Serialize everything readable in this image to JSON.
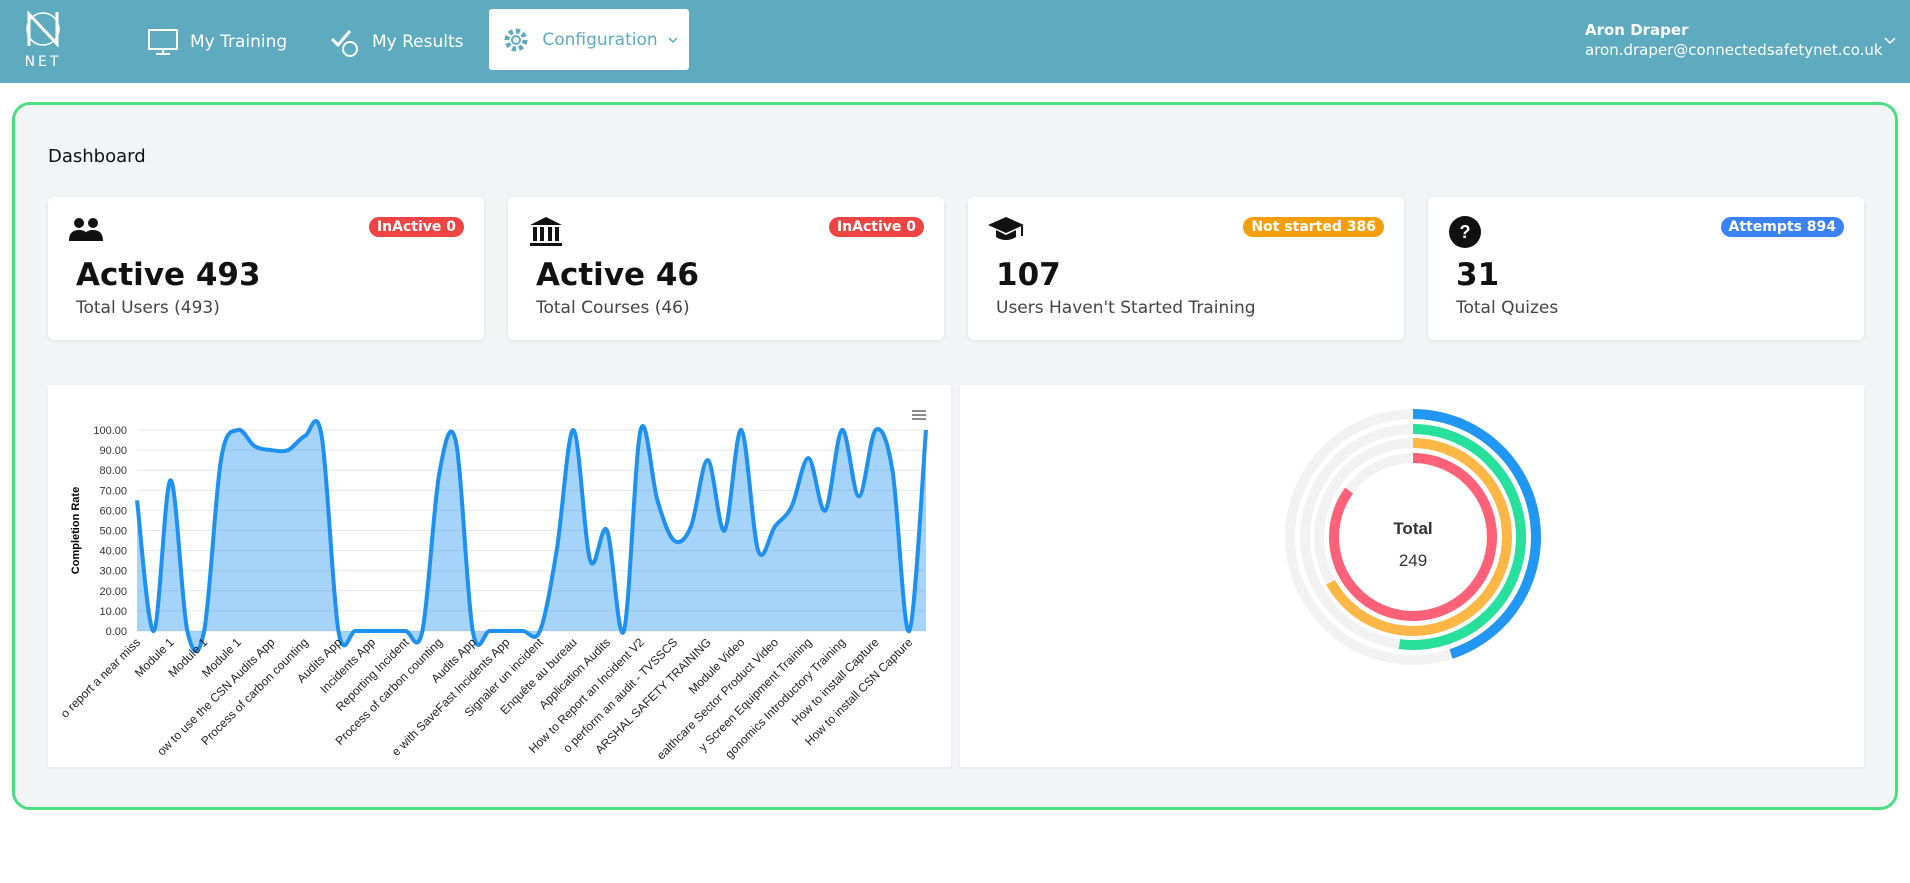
{
  "nav": {
    "logo": "NET",
    "items": [
      "My Training",
      "My Results",
      "Configuration"
    ],
    "user": {
      "name": "Aron Draper",
      "email": "aron.draper@connectedsafetynet.co.uk"
    }
  },
  "page_title": "Dashboard",
  "cards": [
    {
      "title": "Active 493",
      "subtitle": "Total Users (493)",
      "badge": "InActive 0",
      "badge_color": "#ef4444"
    },
    {
      "title": "Active 46",
      "subtitle": "Total Courses (46)",
      "badge": "InActive 0",
      "badge_color": "#ef4444"
    },
    {
      "title": "107",
      "subtitle": "Users Haven't Started Training",
      "badge": "Not started 386",
      "badge_color": "#f59e0b"
    },
    {
      "title": "31",
      "subtitle": "Total Quizes",
      "badge": "Attempts 894",
      "badge_color": "#3b82f6"
    }
  ],
  "chart_data": [
    {
      "type": "area",
      "y_label": "Completion Rate",
      "color": "#1e90f0",
      "grid": true,
      "categories": [
        "o report a near miss",
        null,
        "Module 1",
        null,
        "Module 1",
        null,
        "Module 1",
        null,
        "ow to use the CSN Audits App",
        null,
        "Process of carbon counting",
        null,
        "Audits App",
        null,
        "Incidents App",
        null,
        "Reporting Incident",
        null,
        "Process of carbon counting",
        null,
        "Audits App",
        null,
        "e with SaveFast Incidents App",
        null,
        "Signaler un incident",
        null,
        "Enquête au bureau",
        null,
        "Application Audits",
        null,
        "How to Report an Incident V2",
        null,
        "o perform an audit - TVSSCS",
        null,
        "ARSHAL SAFETY TRAINING",
        null,
        "Module Video",
        null,
        "ealthcare Sector Product Video",
        null,
        "y Screen Equipment Training",
        null,
        "gonomics Introductory Training",
        null,
        "How to install Capture",
        null,
        "How to install CSN Capture",
        null
      ],
      "values": [
        65,
        0,
        75,
        0,
        0,
        85,
        100,
        92,
        90,
        90,
        97,
        97,
        0,
        0,
        0,
        0,
        0,
        0,
        78,
        94,
        0,
        0,
        0,
        0,
        0,
        40,
        100,
        35,
        50,
        0,
        100,
        65,
        45,
        52,
        85,
        50,
        100,
        40,
        52,
        62,
        86,
        60,
        100,
        67,
        100,
        80,
        0,
        100
      ],
      "ylim": [
        0,
        100
      ],
      "yticks": [
        {
          "value": 0,
          "label": "0.00"
        },
        {
          "value": 10,
          "label": "10.00"
        },
        {
          "value": 20,
          "label": "20.00"
        },
        {
          "value": 30,
          "label": "30.00"
        },
        {
          "value": 40,
          "label": "40.00"
        },
        {
          "value": 50,
          "label": "50.00"
        },
        {
          "value": 60,
          "label": "60.00"
        },
        {
          "value": 70,
          "label": "70.00"
        },
        {
          "value": 80,
          "label": "80.00"
        },
        {
          "value": 90,
          "label": "90.00"
        },
        {
          "value": 100,
          "label": "100.00"
        }
      ]
    },
    {
      "type": "radialBar",
      "values": [
        45,
        52,
        67,
        85
      ],
      "colors": [
        "#2196f3",
        "#26e09b",
        "#feb744",
        "#ff6178"
      ],
      "ylim": [
        0,
        100
      ],
      "total_label": "Total",
      "total": 249
    }
  ]
}
